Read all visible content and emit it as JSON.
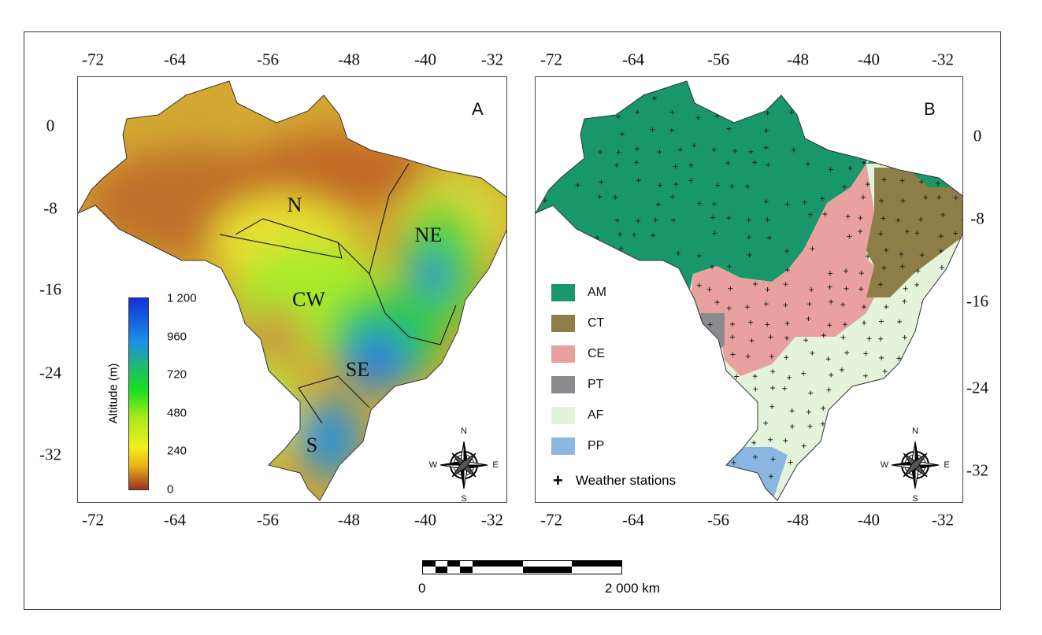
{
  "panel_a": {
    "label": "A",
    "regions": [
      "N",
      "NE",
      "CW",
      "SE",
      "S"
    ],
    "colorbar": {
      "title": "Altitude (m)",
      "ticks": [
        "1 200",
        "960",
        "720",
        "480",
        "240",
        "0"
      ]
    }
  },
  "panel_b": {
    "label": "B",
    "legend": [
      {
        "code": "AM",
        "color": "#17976a"
      },
      {
        "code": "CT",
        "color": "#8c7e46"
      },
      {
        "code": "CE",
        "color": "#e8a19e"
      },
      {
        "code": "PT",
        "color": "#8a8b8f"
      },
      {
        "code": "AF",
        "color": "#e4f4da"
      },
      {
        "code": "PP",
        "color": "#8bb6e2"
      }
    ],
    "stations_label": "Weather stations"
  },
  "axes": {
    "lon": [
      "-72",
      "-64",
      "-56",
      "-48",
      "-40",
      "-32"
    ],
    "lat": [
      "0",
      "-8",
      "-16",
      "-24",
      "-32"
    ]
  },
  "compass": {
    "n": "N",
    "e": "E",
    "s": "S",
    "w": "W"
  },
  "scale_bar": {
    "start": "0",
    "end": "2 000 km"
  }
}
